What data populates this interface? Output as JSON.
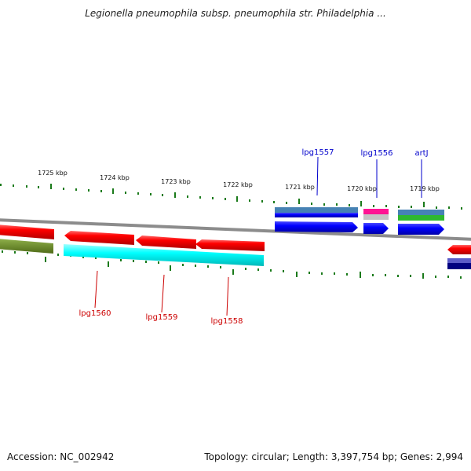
{
  "header": {
    "title": "Legionella pneumophila subsp. pneumophila str. Philadelphia ..."
  },
  "footer": {
    "accession": "Accession: NC_002942",
    "summary": "Topology: circular; Length: 3,397,754 bp; Genes: 2,994"
  },
  "ruler": {
    "ticks": [
      "1725 kbp",
      "1724 kbp",
      "1723 kbp",
      "1722 kbp",
      "1721 kbp",
      "1720 kbp",
      "1719 kbp"
    ]
  },
  "genes": {
    "upper": [
      {
        "label": "lpg1557",
        "color": "#0000cc"
      },
      {
        "label": "lpg1556",
        "color": "#0000cc"
      },
      {
        "label": "artJ",
        "color": "#0000cc"
      }
    ],
    "lower": [
      {
        "label": "lpg1560",
        "color": "#cc0000"
      },
      {
        "label": "lpg1559",
        "color": "#cc0000"
      },
      {
        "label": "lpg1558",
        "color": "#cc0000"
      }
    ]
  },
  "colors": {
    "backbone": "#8c8c8c",
    "tick": "#1a7a1a",
    "reverse_cds": "#ff0000",
    "forward_cds": "#0000ff",
    "cyan_feature": "#00ffff",
    "olive_feature": "#6b8e23",
    "magenta_feature": "#ff1493",
    "green_feature": "#2eb82e",
    "navy_feature": "#000080"
  }
}
